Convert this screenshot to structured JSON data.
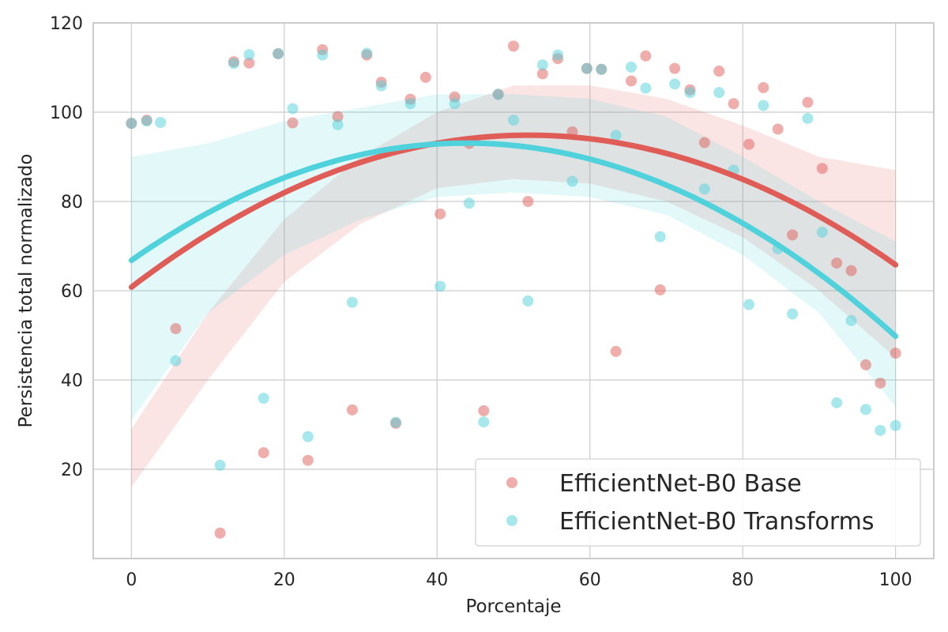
{
  "chart_data": {
    "type": "scatter",
    "title": "",
    "xlabel": "Porcentaje",
    "ylabel": "Persistencia total normalizado",
    "xlim": [
      -5,
      105
    ],
    "ylim": [
      0,
      120
    ],
    "xticks": [
      0,
      20,
      40,
      60,
      80,
      100
    ],
    "yticks": [
      20,
      40,
      60,
      80,
      100,
      120
    ],
    "grid": true,
    "legend_position": "lower-right",
    "series": [
      {
        "name": "EfficientNet-B0 Base",
        "color": "#e05c57",
        "fit": [
          60.8,
          1.31,
          -0.0126
        ],
        "band_upper": [
          [
            0,
            29
          ],
          [
            10,
            55
          ],
          [
            20,
            76
          ],
          [
            30,
            90
          ],
          [
            40,
            100
          ],
          [
            50,
            106
          ],
          [
            60,
            106
          ],
          [
            70,
            103
          ],
          [
            80,
            97
          ],
          [
            90,
            90
          ],
          [
            100,
            87
          ]
        ],
        "band_lower": [
          [
            0,
            16
          ],
          [
            10,
            40
          ],
          [
            20,
            62
          ],
          [
            30,
            75
          ],
          [
            40,
            83
          ],
          [
            50,
            85
          ],
          [
            60,
            84
          ],
          [
            70,
            80
          ],
          [
            80,
            72
          ],
          [
            90,
            60
          ],
          [
            100,
            45
          ]
        ],
        "points": [
          [
            0,
            97.5
          ],
          [
            2,
            98.2
          ],
          [
            5.8,
            51.5
          ],
          [
            11.6,
            5.7
          ],
          [
            13.4,
            111.3
          ],
          [
            15.4,
            111
          ],
          [
            17.3,
            23.7
          ],
          [
            19.2,
            113.1
          ],
          [
            21.1,
            97.6
          ],
          [
            23.1,
            22
          ],
          [
            25,
            114
          ],
          [
            27,
            99
          ],
          [
            28.9,
            33.3
          ],
          [
            30.8,
            112.8
          ],
          [
            32.7,
            106.7
          ],
          [
            34.6,
            30.3
          ],
          [
            36.5,
            102.9
          ],
          [
            38.5,
            107.8
          ],
          [
            40.4,
            77.2
          ],
          [
            42.3,
            103.4
          ],
          [
            44.2,
            93
          ],
          [
            46.1,
            33.1
          ],
          [
            48,
            104
          ],
          [
            50,
            114.8
          ],
          [
            51.9,
            80
          ],
          [
            53.8,
            108.6
          ],
          [
            55.8,
            112
          ],
          [
            57.7,
            95.6
          ],
          [
            59.6,
            109.8
          ],
          [
            61.5,
            109.6
          ],
          [
            63.4,
            46.4
          ],
          [
            65.4,
            107
          ],
          [
            67.3,
            112.6
          ],
          [
            69.2,
            60.2
          ],
          [
            71.1,
            109.8
          ],
          [
            73.1,
            105
          ],
          [
            75,
            93.2
          ],
          [
            76.9,
            109.2
          ],
          [
            78.8,
            101.9
          ],
          [
            80.8,
            92.8
          ],
          [
            82.7,
            105.5
          ],
          [
            84.6,
            96.2
          ],
          [
            86.5,
            72.5
          ],
          [
            88.5,
            102.2
          ],
          [
            90.4,
            87.4
          ],
          [
            92.3,
            66.2
          ],
          [
            94.2,
            64.5
          ],
          [
            96.1,
            43.4
          ],
          [
            98,
            39.3
          ],
          [
            100,
            46
          ]
        ]
      },
      {
        "name": "EfficientNet-B0 Transforms",
        "color": "#4fd2db",
        "fit": [
          66.8,
          1.2,
          -0.0137
        ],
        "band_upper": [
          [
            0,
            90
          ],
          [
            10,
            93
          ],
          [
            20,
            98
          ],
          [
            30,
            101
          ],
          [
            40,
            104
          ],
          [
            50,
            104
          ],
          [
            60,
            103
          ],
          [
            70,
            99
          ],
          [
            80,
            90
          ],
          [
            90,
            80
          ],
          [
            100,
            71
          ]
        ],
        "band_lower": [
          [
            0,
            31
          ],
          [
            10,
            55
          ],
          [
            20,
            68
          ],
          [
            30,
            76
          ],
          [
            40,
            81
          ],
          [
            50,
            82
          ],
          [
            60,
            81
          ],
          [
            70,
            77
          ],
          [
            80,
            68
          ],
          [
            90,
            55
          ],
          [
            100,
            34
          ]
        ],
        "points": [
          [
            0,
            97.5
          ],
          [
            2,
            98
          ],
          [
            3.8,
            97.7
          ],
          [
            5.8,
            44.3
          ],
          [
            11.6,
            20.9
          ],
          [
            13.4,
            110.9
          ],
          [
            15.4,
            112.9
          ],
          [
            17.3,
            35.9
          ],
          [
            19.2,
            113.1
          ],
          [
            21.1,
            100.8
          ],
          [
            23.1,
            27.3
          ],
          [
            25,
            112.8
          ],
          [
            27,
            97.2
          ],
          [
            28.9,
            57.4
          ],
          [
            30.8,
            113.2
          ],
          [
            32.7,
            105.9
          ],
          [
            34.6,
            30.5
          ],
          [
            36.5,
            101.9
          ],
          [
            40.4,
            61
          ],
          [
            42.3,
            101.9
          ],
          [
            44.2,
            79.6
          ],
          [
            46.1,
            30.6
          ],
          [
            48,
            104
          ],
          [
            50,
            98.2
          ],
          [
            51.9,
            57.7
          ],
          [
            53.8,
            110.6
          ],
          [
            55.8,
            112.8
          ],
          [
            57.7,
            84.5
          ],
          [
            59.6,
            109.8
          ],
          [
            61.5,
            109.6
          ],
          [
            63.4,
            94.8
          ],
          [
            65.4,
            110.1
          ],
          [
            67.3,
            105.4
          ],
          [
            69.2,
            72.1
          ],
          [
            71.1,
            106.3
          ],
          [
            73.1,
            104.4
          ],
          [
            75,
            82.8
          ],
          [
            76.9,
            104.4
          ],
          [
            78.8,
            87
          ],
          [
            80.8,
            56.9
          ],
          [
            82.7,
            101.5
          ],
          [
            84.6,
            69.4
          ],
          [
            86.5,
            54.8
          ],
          [
            88.5,
            98.6
          ],
          [
            90.4,
            73.1
          ],
          [
            92.3,
            34.9
          ],
          [
            94.2,
            53.3
          ],
          [
            96.1,
            33.4
          ],
          [
            98,
            28.7
          ],
          [
            100,
            29.8
          ]
        ]
      }
    ]
  }
}
